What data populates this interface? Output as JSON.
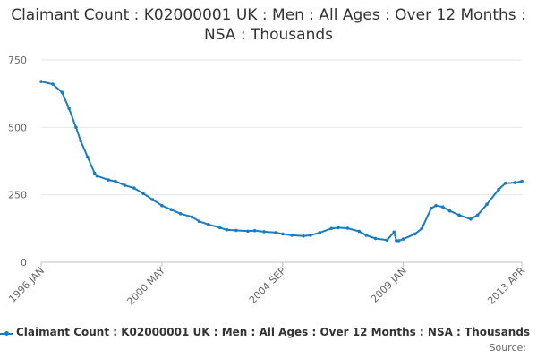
{
  "title": "Claimant Count : K02000001 UK : Men : All Ages : Over 12 Months : NSA : Thousands",
  "source_label": "Source:",
  "chart_data": {
    "type": "line",
    "title": "Claimant Count : K02000001 UK : Men : All Ages : Over 12 Months : NSA : Thousands",
    "xlabel": "",
    "ylabel": "",
    "x_tick_labels": [
      "1996 JAN",
      "2000 MAY",
      "2004 SEP",
      "2009 JAN",
      "2013 APR"
    ],
    "y_ticks": [
      0,
      250,
      500,
      750
    ],
    "ylim": [
      0,
      750
    ],
    "grid": true,
    "legend": "bottom",
    "series": [
      {
        "name": "Claimant Count : K02000001 UK : Men : All Ages : Over 12 Months : NSA : Thousands",
        "color": "#1c7cc0",
        "x": [
          "1996-01",
          "1996-06",
          "1996-10",
          "1997-01",
          "1997-04",
          "1997-06",
          "1997-09",
          "1997-12",
          "1998-01",
          "1998-06",
          "1998-09",
          "1999-01",
          "1999-05",
          "1999-09",
          "2000-01",
          "2000-05",
          "2000-09",
          "2001-01",
          "2001-06",
          "2001-09",
          "2002-01",
          "2002-06",
          "2002-09",
          "2003-01",
          "2003-06",
          "2003-09",
          "2004-01",
          "2004-06",
          "2004-09",
          "2005-01",
          "2005-06",
          "2005-09",
          "2006-01",
          "2006-06",
          "2006-09",
          "2007-01",
          "2007-06",
          "2007-09",
          "2008-01",
          "2008-06",
          "2008-09",
          "2008-10",
          "2008-11",
          "2009-01",
          "2009-06",
          "2009-09",
          "2010-01",
          "2010-03",
          "2010-06",
          "2010-09",
          "2011-01",
          "2011-06",
          "2011-09",
          "2012-01",
          "2012-06",
          "2012-09",
          "2013-01",
          "2013-04"
        ],
        "values": [
          670,
          660,
          630,
          570,
          500,
          450,
          390,
          330,
          320,
          305,
          300,
          285,
          275,
          255,
          232,
          210,
          195,
          180,
          168,
          152,
          140,
          128,
          120,
          118,
          115,
          117,
          113,
          110,
          105,
          100,
          97,
          100,
          110,
          125,
          128,
          126,
          114,
          100,
          88,
          82,
          112,
          80,
          80,
          86,
          105,
          125,
          200,
          210,
          205,
          190,
          175,
          160,
          175,
          215,
          270,
          293,
          295,
          300
        ]
      }
    ]
  }
}
